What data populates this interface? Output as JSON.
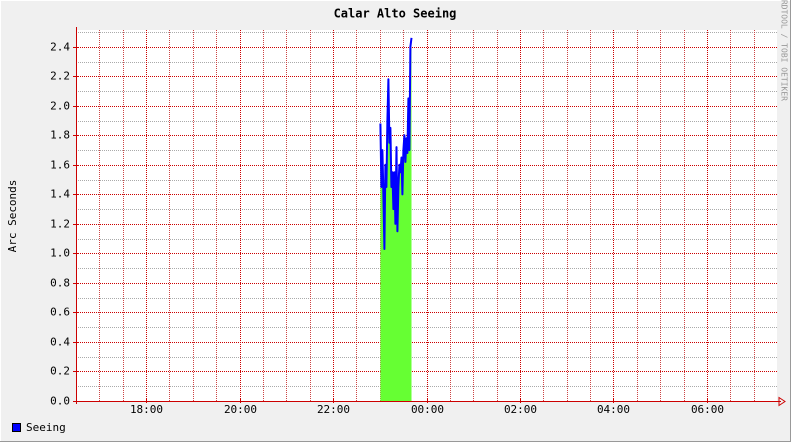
{
  "chart_data": {
    "type": "area",
    "title": "Calar Alto Seeing",
    "y_label": "Arc Seconds",
    "watermark": "RRDTOOL / TOBI OETIKER",
    "xlim": [
      16.5,
      31.5
    ],
    "xticks": [
      {
        "value": 18,
        "label": "18:00"
      },
      {
        "value": 20,
        "label": "20:00"
      },
      {
        "value": 22,
        "label": "22:00"
      },
      {
        "value": 24,
        "label": "00:00"
      },
      {
        "value": 26,
        "label": "02:00"
      },
      {
        "value": 28,
        "label": "04:00"
      },
      {
        "value": 30,
        "label": "06:00"
      }
    ],
    "xminorticks": [
      17,
      17.5,
      18.5,
      19,
      19.5,
      20.5,
      21,
      21.5,
      22.5,
      23,
      23.5,
      24.5,
      25,
      25.5,
      26.5,
      27,
      27.5,
      28.5,
      29,
      29.5,
      30.5,
      31
    ],
    "ylim": [
      0,
      2.5
    ],
    "yticks": [
      {
        "value": 0,
        "label": "0.0"
      },
      0.2,
      0.4,
      0.6,
      0.8,
      {
        "value": 1,
        "label": "1.0"
      },
      1.2,
      1.4,
      1.6,
      1.8,
      {
        "value": 2,
        "label": "2.0"
      },
      2.2,
      2.4
    ],
    "yminorticks": [
      0.1,
      0.3,
      0.5,
      0.7,
      0.9,
      1.1,
      1.3,
      1.5,
      1.7,
      1.9,
      2.1,
      2.3,
      2.5
    ],
    "grid": true,
    "legend": "bottom-left",
    "x": [
      23.014,
      23.035,
      23.057,
      23.078,
      23.1,
      23.121,
      23.143,
      23.164,
      23.185,
      23.207,
      23.228,
      23.25,
      23.271,
      23.292,
      23.314,
      23.335,
      23.357,
      23.378,
      23.399,
      23.421,
      23.442,
      23.464,
      23.485,
      23.506,
      23.528,
      23.549,
      23.571,
      23.592,
      23.613,
      23.635,
      23.656,
      23.678
    ],
    "series": [
      {
        "name": "Seeing",
        "color": "#0000ff",
        "fill": "#66ff33",
        "values": [
          1.88,
          1.45,
          1.7,
          1.4,
          1.03,
          1.6,
          1.45,
          1.9,
          2.18,
          1.75,
          1.85,
          1.45,
          1.55,
          1.3,
          1.55,
          1.2,
          1.72,
          1.15,
          1.45,
          1.6,
          1.55,
          1.65,
          1.4,
          1.7,
          1.8,
          1.62,
          1.78,
          1.68,
          2.05,
          1.7,
          2.4,
          2.46
        ]
      }
    ]
  }
}
